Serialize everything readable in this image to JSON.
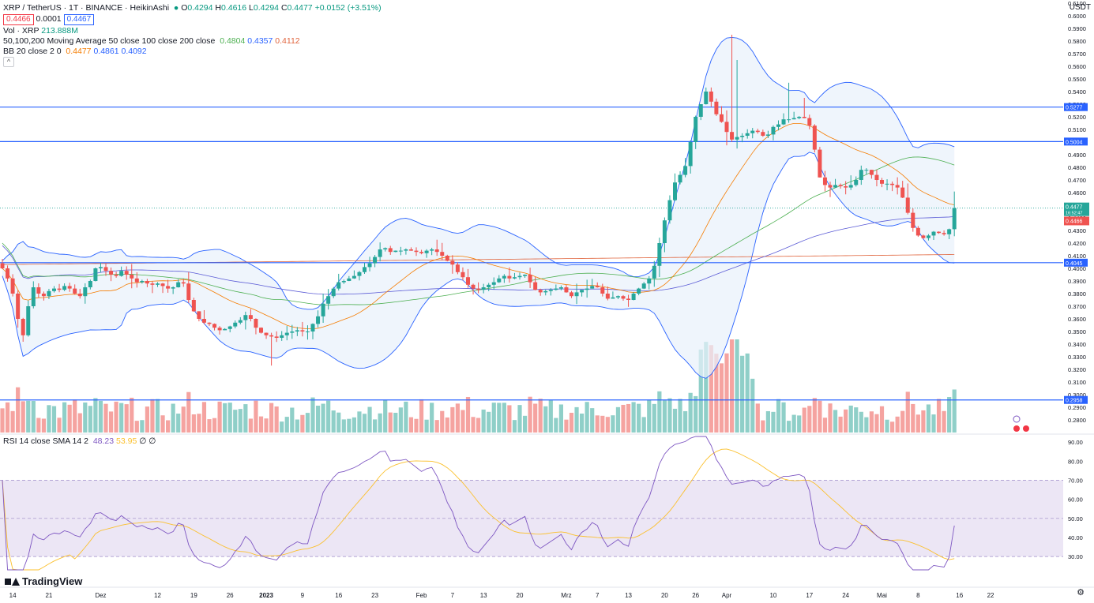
{
  "header": {
    "symbol_line": "XRP / TetherUS · 1T · BINANCE · HeikinAshi",
    "sell_price": "0.4466",
    "spread": "0.0001",
    "buy_price": "0.4467",
    "ohlc": {
      "o_label": "O",
      "o": "0.4294",
      "h_label": "H",
      "h": "0.4616",
      "l_label": "L",
      "l": "0.4294",
      "c_label": "C",
      "c": "0.4477",
      "change": "+0.0152 (+3.51%)"
    },
    "volume_label": "Vol · XRP",
    "volume_value": "213.888M",
    "ma_label": "50,100,200 Moving Average 50 close 100 close 200 close",
    "ma_values": [
      "0.4804",
      "0.4357",
      "0.4112"
    ],
    "bb_label": "BB 20 close 2 0",
    "bb_values": [
      "0.4477",
      "0.4861",
      "0.4092"
    ],
    "collapse_icon": "chevron-up-icon",
    "currency": "USDT",
    "rsi_label": "RSI 14 close SMA 14 2",
    "rsi_values": [
      "48.23",
      "53.95"
    ],
    "rsi_extra": "∅ ∅",
    "logo_text": "TradingView",
    "settings_icon": "gear-icon"
  },
  "colors": {
    "up": "#26a69a",
    "down": "#ef5350",
    "vol_up": "#8fcfc8",
    "vol_down": "#f5a3a0",
    "ma50": "#4caf50",
    "ma100": "#5b5bd6",
    "ma200": "#e0633b",
    "bb_basis": "#f57c00",
    "bb_band": "#2962ff",
    "bb_fill": "#e8f1fb",
    "hline": "#2962ff",
    "rsi_line": "#7e57c2",
    "rsi_ma": "#fbc02d",
    "rsi_fill": "#ece6f5"
  },
  "chart_data": [
    {
      "type": "candlestick",
      "subtype": "heikin-ashi",
      "title": "XRP / TetherUS · 1T · BINANCE · HeikinAshi",
      "ylabel": "USDT",
      "ylim": [
        0.27,
        0.61
      ],
      "y_ticks": [
        "0.6100",
        "0.6000",
        "0.5900",
        "0.5800",
        "0.5700",
        "0.5600",
        "0.5500",
        "0.5400",
        "0.5300",
        "0.5200",
        "0.5100",
        "0.5000",
        "0.4900",
        "0.4800",
        "0.4700",
        "0.4600",
        "0.4500",
        "0.4400",
        "0.4300",
        "0.4200",
        "0.4100",
        "0.4000",
        "0.3900",
        "0.3800",
        "0.3700",
        "0.3600",
        "0.3500",
        "0.3400",
        "0.3300",
        "0.3200",
        "0.3100",
        "0.3000",
        "0.2900",
        "0.2800"
      ],
      "x_ticks": [
        {
          "label": "14",
          "idx": 2
        },
        {
          "label": "21",
          "idx": 9
        },
        {
          "label": "Dez",
          "idx": 19
        },
        {
          "label": "12",
          "idx": 30
        },
        {
          "label": "19",
          "idx": 37
        },
        {
          "label": "26",
          "idx": 44
        },
        {
          "label": "2023",
          "idx": 51
        },
        {
          "label": "9",
          "idx": 58
        },
        {
          "label": "16",
          "idx": 65
        },
        {
          "label": "23",
          "idx": 72
        },
        {
          "label": "Feb",
          "idx": 81
        },
        {
          "label": "7",
          "idx": 87
        },
        {
          "label": "13",
          "idx": 93
        },
        {
          "label": "20",
          "idx": 100
        },
        {
          "label": "Mrz",
          "idx": 109
        },
        {
          "label": "7",
          "idx": 115
        },
        {
          "label": "13",
          "idx": 121
        },
        {
          "label": "20",
          "idx": 128
        },
        {
          "label": "26",
          "idx": 134
        },
        {
          "label": "Apr",
          "idx": 140
        },
        {
          "label": "10",
          "idx": 149
        },
        {
          "label": "17",
          "idx": 156
        },
        {
          "label": "24",
          "idx": 163
        },
        {
          "label": "Mai",
          "idx": 170
        },
        {
          "label": "8",
          "idx": 177
        },
        {
          "label": "16",
          "idx": 185
        },
        {
          "label": "22",
          "idx": 191
        }
      ],
      "horizontal_lines": [
        {
          "value": 0.5277,
          "label": "0.5277"
        },
        {
          "value": 0.5004,
          "label": "0.5004"
        },
        {
          "value": 0.4045,
          "label": "0.4045"
        },
        {
          "value": 0.2958,
          "label": "0.2958"
        }
      ],
      "price_markers": [
        {
          "value": 0.4477,
          "label": "0.4477",
          "sub": "16:52:47",
          "color": "#26a69a"
        },
        {
          "value": 0.4466,
          "label": "0.4466",
          "color": "#ef5350"
        }
      ],
      "closes": [
        0.4,
        0.392,
        0.38,
        0.36,
        0.347,
        0.37,
        0.385,
        0.38,
        0.378,
        0.382,
        0.384,
        0.383,
        0.386,
        0.384,
        0.38,
        0.378,
        0.385,
        0.39,
        0.4,
        0.401,
        0.398,
        0.395,
        0.394,
        0.398,
        0.395,
        0.392,
        0.389,
        0.39,
        0.388,
        0.387,
        0.388,
        0.386,
        0.384,
        0.385,
        0.389,
        0.388,
        0.375,
        0.366,
        0.36,
        0.357,
        0.356,
        0.353,
        0.351,
        0.352,
        0.354,
        0.357,
        0.359,
        0.363,
        0.36,
        0.353,
        0.349,
        0.347,
        0.346,
        0.345,
        0.347,
        0.349,
        0.35,
        0.351,
        0.35,
        0.35,
        0.356,
        0.362,
        0.372,
        0.378,
        0.384,
        0.389,
        0.39,
        0.392,
        0.394,
        0.397,
        0.401,
        0.404,
        0.409,
        0.415,
        0.416,
        0.413,
        0.414,
        0.414,
        0.415,
        0.414,
        0.413,
        0.412,
        0.414,
        0.415,
        0.413,
        0.41,
        0.406,
        0.403,
        0.397,
        0.393,
        0.387,
        0.384,
        0.383,
        0.385,
        0.387,
        0.389,
        0.392,
        0.394,
        0.392,
        0.393,
        0.394,
        0.395,
        0.389,
        0.383,
        0.381,
        0.382,
        0.383,
        0.384,
        0.385,
        0.381,
        0.378,
        0.381,
        0.383,
        0.384,
        0.386,
        0.385,
        0.38,
        0.376,
        0.377,
        0.378,
        0.376,
        0.375,
        0.38,
        0.384,
        0.388,
        0.392,
        0.402,
        0.42,
        0.438,
        0.454,
        0.468,
        0.474,
        0.481,
        0.5,
        0.52,
        0.53,
        0.54,
        0.532,
        0.522,
        0.516,
        0.508,
        0.502,
        0.504,
        0.505,
        0.507,
        0.509,
        0.508,
        0.505,
        0.506,
        0.512,
        0.514,
        0.518,
        0.518,
        0.519,
        0.52,
        0.519,
        0.513,
        0.494,
        0.472,
        0.466,
        0.464,
        0.466,
        0.465,
        0.464,
        0.466,
        0.47,
        0.478,
        0.478,
        0.474,
        0.47,
        0.467,
        0.467,
        0.466,
        0.464,
        0.456,
        0.444,
        0.432,
        0.426,
        0.424,
        0.426,
        0.429,
        0.428,
        0.427,
        0.431,
        0.4477
      ]
    },
    {
      "type": "bar",
      "title": "Vol · XRP",
      "note": "volume histogram below price (relative heights)"
    },
    {
      "type": "line",
      "title": "RSI 14 close SMA 14 2",
      "ylim": [
        23,
        93
      ],
      "y_ticks": [
        "90.00",
        "80.00",
        "70.00",
        "60.00",
        "50.00",
        "40.00",
        "30.00"
      ],
      "bands": {
        "upper": 70,
        "middle": 50,
        "lower": 30
      },
      "series": [
        {
          "name": "RSI",
          "last": 48.23
        },
        {
          "name": "SMA",
          "last": 53.95
        }
      ]
    }
  ]
}
